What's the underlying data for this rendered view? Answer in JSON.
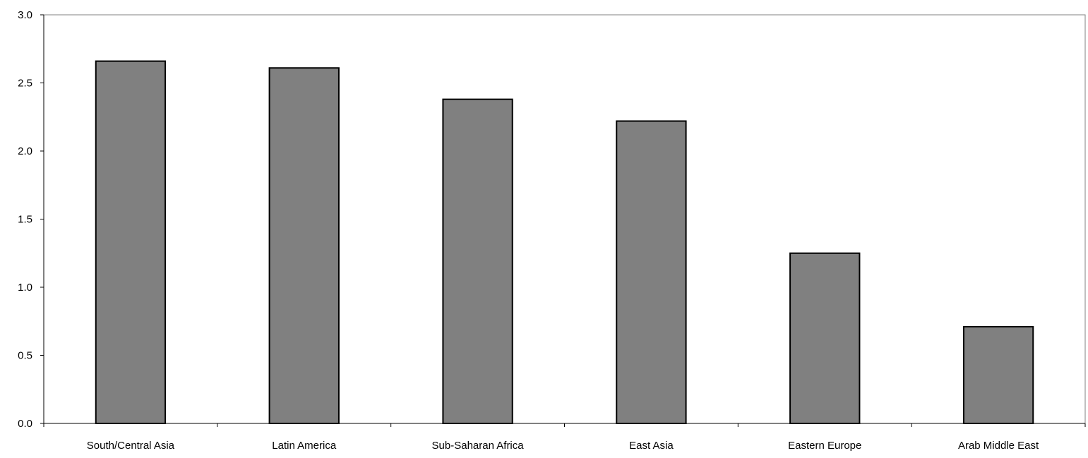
{
  "chart_data": {
    "type": "bar",
    "title": "",
    "xlabel": "",
    "ylabel": "",
    "categories": [
      "South/Central Asia",
      "Latin America",
      "Sub-Saharan Africa",
      "East Asia",
      "Eastern Europe",
      "Arab Middle East"
    ],
    "values": [
      2.66,
      2.61,
      2.38,
      2.22,
      1.25,
      0.71
    ],
    "ylim": [
      0,
      3.0
    ],
    "yticks": [
      "0.0",
      "0.5",
      "1.0",
      "1.5",
      "2.0",
      "2.5",
      "3.0"
    ],
    "grid": false,
    "legend": "none",
    "colors": {
      "bar_fill": "#808080",
      "bar_stroke": "#000000",
      "axis": "#000000",
      "plot_border": "#808080",
      "background": "#ffffff"
    }
  }
}
